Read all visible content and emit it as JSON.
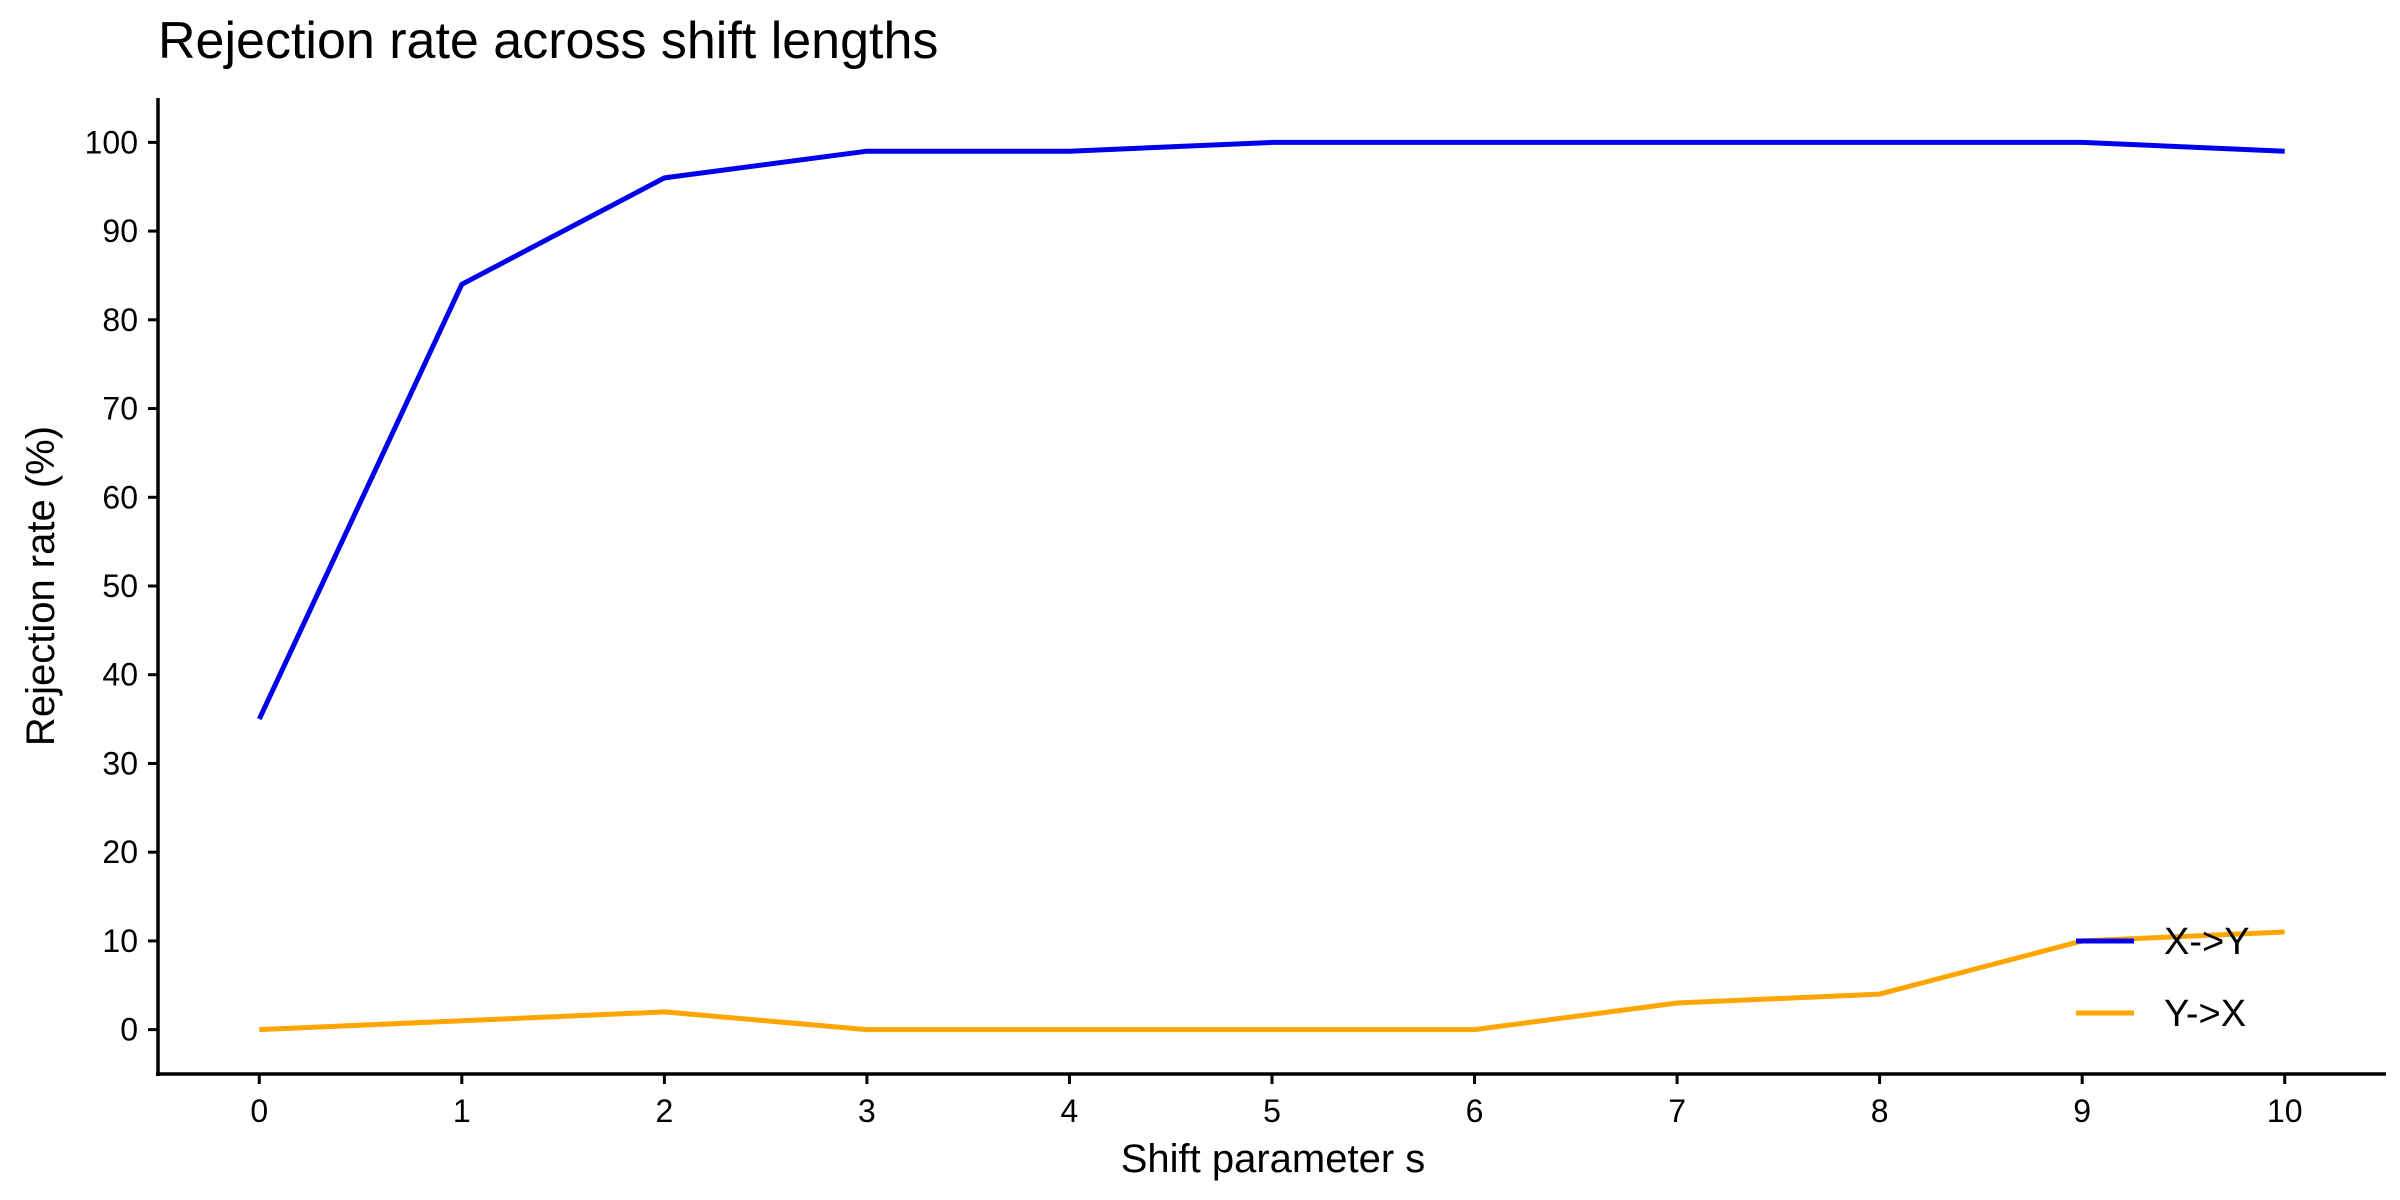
{
  "chart_data": {
    "type": "line",
    "title": "Rejection rate across shift lengths",
    "xlabel": "Shift parameter s",
    "ylabel": "Rejection rate (%)",
    "x": [
      0,
      1,
      2,
      3,
      4,
      5,
      6,
      7,
      8,
      9,
      10
    ],
    "xticks": [
      "0",
      "1",
      "2",
      "3",
      "4",
      "5",
      "6",
      "7",
      "8",
      "9",
      "10"
    ],
    "yticks": [
      "0",
      "10",
      "20",
      "30",
      "40",
      "50",
      "60",
      "70",
      "80",
      "90",
      "100"
    ],
    "xlim": [
      -0.5,
      10.5
    ],
    "ylim": [
      -5,
      105
    ],
    "grid": false,
    "legend_position": "bottom-right",
    "series": [
      {
        "name": "X->Y",
        "color": "#0000EE",
        "values": [
          35,
          84,
          96,
          99,
          99,
          100,
          100,
          100,
          100,
          100,
          99
        ]
      },
      {
        "name": "Y->X",
        "color": "#FFA500",
        "values": [
          0,
          1,
          2,
          0,
          0,
          0,
          0,
          3,
          4,
          10,
          11
        ]
      }
    ]
  }
}
